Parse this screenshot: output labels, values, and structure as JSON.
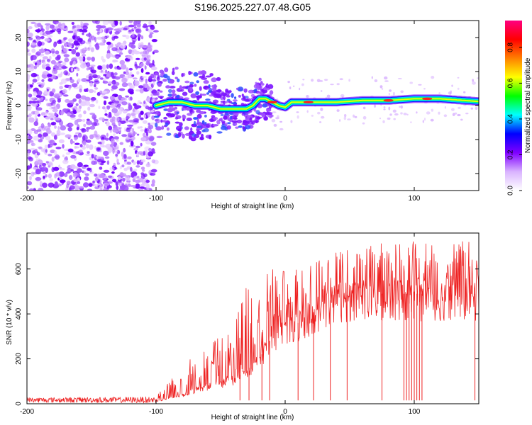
{
  "title": "S196.2025.227.07.48.G05",
  "chart_data": [
    {
      "type": "heatmap",
      "xlabel": "Height of straight line (km)",
      "ylabel": "Frequency (Hz)",
      "xlim": [
        -200,
        150
      ],
      "ylim": [
        -25,
        25
      ],
      "xticks": [
        -200,
        -100,
        0,
        100
      ],
      "yticks": [
        -20,
        -10,
        0,
        10,
        20
      ],
      "colorbar": {
        "label": "Normalized spectral amplitude",
        "range": [
          0,
          0.95
        ],
        "ticks": [
          0.0,
          0.2,
          0.4,
          0.6,
          0.8
        ],
        "colors": [
          "#ffffff",
          "#d9b3ff",
          "#7f00ff",
          "#0000ff",
          "#00ffff",
          "#00ff00",
          "#ffff00",
          "#ff8000",
          "#ff0000",
          "#ff0080"
        ]
      },
      "ridge": {
        "x": [
          -100,
          -90,
          -80,
          -70,
          -60,
          -50,
          -40,
          -30,
          -25,
          -20,
          -15,
          -10,
          -5,
          0,
          5,
          10,
          20,
          40,
          60,
          80,
          100,
          120,
          150
        ],
        "freq": [
          0,
          1,
          1,
          0,
          0,
          -1,
          -1,
          -1,
          0,
          2,
          2,
          1,
          0,
          -0.5,
          1,
          1,
          1,
          1,
          1.5,
          1.5,
          2,
          2,
          1.2
        ]
      }
    },
    {
      "type": "line",
      "xlabel": "Height of straight line (km)",
      "ylabel": "SNR (10 * v/v)",
      "xlim": [
        -200,
        150
      ],
      "ylim": [
        0,
        760
      ],
      "xticks": [
        -200,
        -100,
        0,
        100
      ],
      "yticks": [
        0,
        200,
        400,
        600
      ],
      "color": "#ee2222",
      "envelope": {
        "x": [
          -200,
          -100,
          -90,
          -80,
          -70,
          -60,
          -50,
          -40,
          -30,
          -20,
          -10,
          0,
          10,
          20,
          30,
          40,
          60,
          80,
          100,
          120,
          150
        ],
        "base": [
          12,
          12,
          25,
          40,
          60,
          80,
          90,
          110,
          150,
          200,
          300,
          330,
          360,
          400,
          440,
          480,
          490,
          490,
          490,
          490,
          490
        ],
        "peak": [
          30,
          35,
          110,
          160,
          220,
          260,
          300,
          340,
          520,
          560,
          600,
          600,
          620,
          650,
          660,
          680,
          700,
          720,
          730,
          730,
          720
        ]
      },
      "dropouts_km": [
        -35,
        -28,
        -18,
        -12,
        10,
        22,
        35,
        48,
        75,
        92,
        94,
        96,
        98,
        100,
        102,
        104,
        106,
        147
      ]
    }
  ]
}
